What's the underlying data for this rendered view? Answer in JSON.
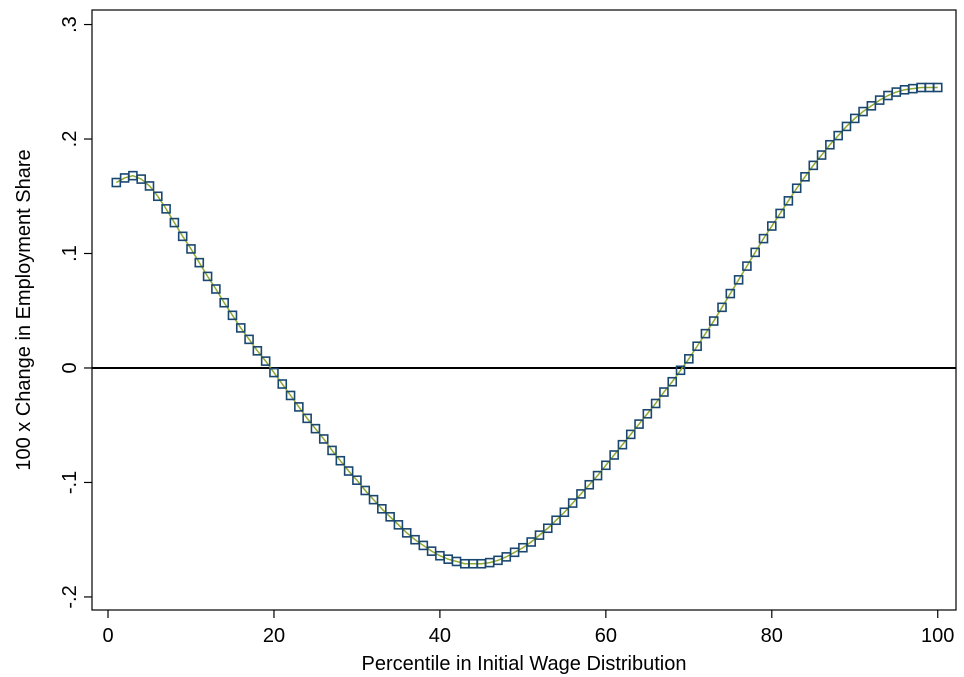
{
  "chart_data": {
    "type": "line",
    "xlabel": "Percentile in Initial Wage Distribution",
    "ylabel": "100 x Change in Employment Share",
    "x": [
      1,
      2,
      3,
      4,
      5,
      6,
      7,
      8,
      9,
      10,
      11,
      12,
      13,
      14,
      15,
      16,
      17,
      18,
      19,
      20,
      21,
      22,
      23,
      24,
      25,
      26,
      27,
      28,
      29,
      30,
      31,
      32,
      33,
      34,
      35,
      36,
      37,
      38,
      39,
      40,
      41,
      42,
      43,
      44,
      45,
      46,
      47,
      48,
      49,
      50,
      51,
      52,
      53,
      54,
      55,
      56,
      57,
      58,
      59,
      60,
      61,
      62,
      63,
      64,
      65,
      66,
      67,
      68,
      69,
      70,
      71,
      72,
      73,
      74,
      75,
      76,
      77,
      78,
      79,
      80,
      81,
      82,
      83,
      84,
      85,
      86,
      87,
      88,
      89,
      90,
      91,
      92,
      93,
      94,
      95,
      96,
      97,
      98,
      99,
      100
    ],
    "series": [
      {
        "color": "#1a476f",
        "line_color": "#90a830",
        "values": [
          0.162,
          0.166,
          0.168,
          0.165,
          0.159,
          0.15,
          0.139,
          0.127,
          0.115,
          0.104,
          0.092,
          0.08,
          0.069,
          0.057,
          0.046,
          0.035,
          0.025,
          0.015,
          0.006,
          -0.004,
          -0.014,
          -0.024,
          -0.034,
          -0.044,
          -0.053,
          -0.062,
          -0.072,
          -0.081,
          -0.09,
          -0.098,
          -0.107,
          -0.115,
          -0.123,
          -0.13,
          -0.137,
          -0.144,
          -0.15,
          -0.155,
          -0.16,
          -0.164,
          -0.167,
          -0.169,
          -0.171,
          -0.171,
          -0.171,
          -0.17,
          -0.168,
          -0.165,
          -0.161,
          -0.157,
          -0.152,
          -0.146,
          -0.14,
          -0.133,
          -0.126,
          -0.118,
          -0.11,
          -0.102,
          -0.094,
          -0.085,
          -0.076,
          -0.067,
          -0.058,
          -0.049,
          -0.04,
          -0.031,
          -0.021,
          -0.012,
          -0.002,
          0.008,
          0.019,
          0.03,
          0.041,
          0.053,
          0.065,
          0.077,
          0.089,
          0.101,
          0.113,
          0.124,
          0.135,
          0.146,
          0.157,
          0.167,
          0.177,
          0.186,
          0.195,
          0.203,
          0.211,
          0.218,
          0.224,
          0.229,
          0.234,
          0.238,
          0.241,
          0.243,
          0.244,
          0.245,
          0.245,
          0.245
        ]
      }
    ],
    "xlim": [
      -1.93,
      102.2
    ],
    "ylim": [
      -0.2114,
      0.3127
    ],
    "xticks": [
      0,
      20,
      40,
      60,
      80,
      100
    ],
    "yticks": [
      {
        "value": -0.2,
        "label": "-.2"
      },
      {
        "value": -0.1,
        "label": "-.1"
      },
      0,
      {
        "value": 0.1,
        "label": ".1"
      },
      {
        "value": 0.2,
        "label": ".2"
      },
      {
        "value": 0.3,
        "label": ".3"
      }
    ],
    "hline": 0,
    "marker": "hollow-square"
  }
}
